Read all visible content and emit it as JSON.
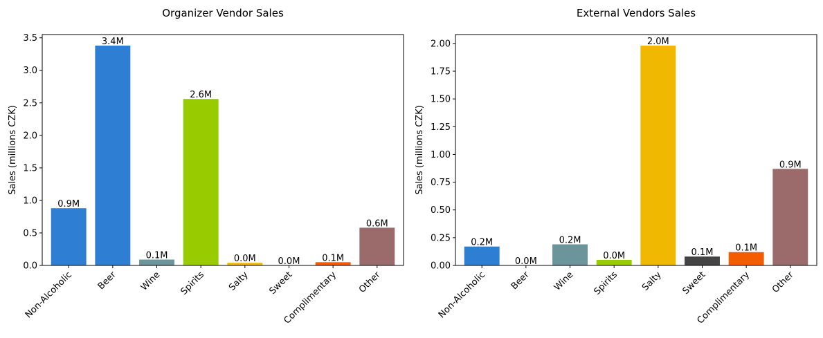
{
  "chart_data": [
    {
      "type": "bar",
      "title": "Organizer Vendor Sales",
      "xlabel": "",
      "ylabel": "Sales (millions CZK)",
      "categories": [
        "Non-Alcoholic",
        "Beer",
        "Wine",
        "Spirits",
        "Salty",
        "Sweet",
        "Complimentary",
        "Other"
      ],
      "values": [
        0.88,
        3.38,
        0.09,
        2.56,
        0.04,
        0.0,
        0.05,
        0.58
      ],
      "data_labels": [
        "0.9M",
        "3.4M",
        "0.1M",
        "2.6M",
        "0.0M",
        "0.0M",
        "0.1M",
        "0.6M"
      ],
      "colors": [
        "#2e7fd4",
        "#2e7fd4",
        "#6b959b",
        "#99cc00",
        "#f0b800",
        "#444444",
        "#f45c00",
        "#9b6b6b"
      ],
      "ylim": [
        0,
        3.55
      ],
      "yticks": [
        0.0,
        0.5,
        1.0,
        1.5,
        2.0,
        2.5,
        3.0,
        3.5
      ],
      "ytick_labels": [
        "0.0",
        "0.5",
        "1.0",
        "1.5",
        "2.0",
        "2.5",
        "3.0",
        "3.5"
      ],
      "grid": false,
      "legend": "none"
    },
    {
      "type": "bar",
      "title": "External Vendors Sales",
      "xlabel": "",
      "ylabel": "Sales (millions CZK)",
      "categories": [
        "Non-Alcoholic",
        "Beer",
        "Wine",
        "Spirits",
        "Salty",
        "Sweet",
        "Complimentary",
        "Other"
      ],
      "values": [
        0.17,
        0.0,
        0.19,
        0.05,
        1.98,
        0.08,
        0.12,
        0.87
      ],
      "data_labels": [
        "0.2M",
        "0.0M",
        "0.2M",
        "0.0M",
        "2.0M",
        "0.1M",
        "0.1M",
        "0.9M"
      ],
      "colors": [
        "#2e7fd4",
        "#2e7fd4",
        "#6b959b",
        "#99cc00",
        "#f0b800",
        "#444444",
        "#f45c00",
        "#9b6b6b"
      ],
      "ylim": [
        0,
        2.08
      ],
      "yticks": [
        0.0,
        0.25,
        0.5,
        0.75,
        1.0,
        1.25,
        1.5,
        1.75,
        2.0
      ],
      "ytick_labels": [
        "0.00",
        "0.25",
        "0.50",
        "0.75",
        "1.00",
        "1.25",
        "1.50",
        "1.75",
        "2.00"
      ],
      "grid": false,
      "legend": "none"
    }
  ]
}
